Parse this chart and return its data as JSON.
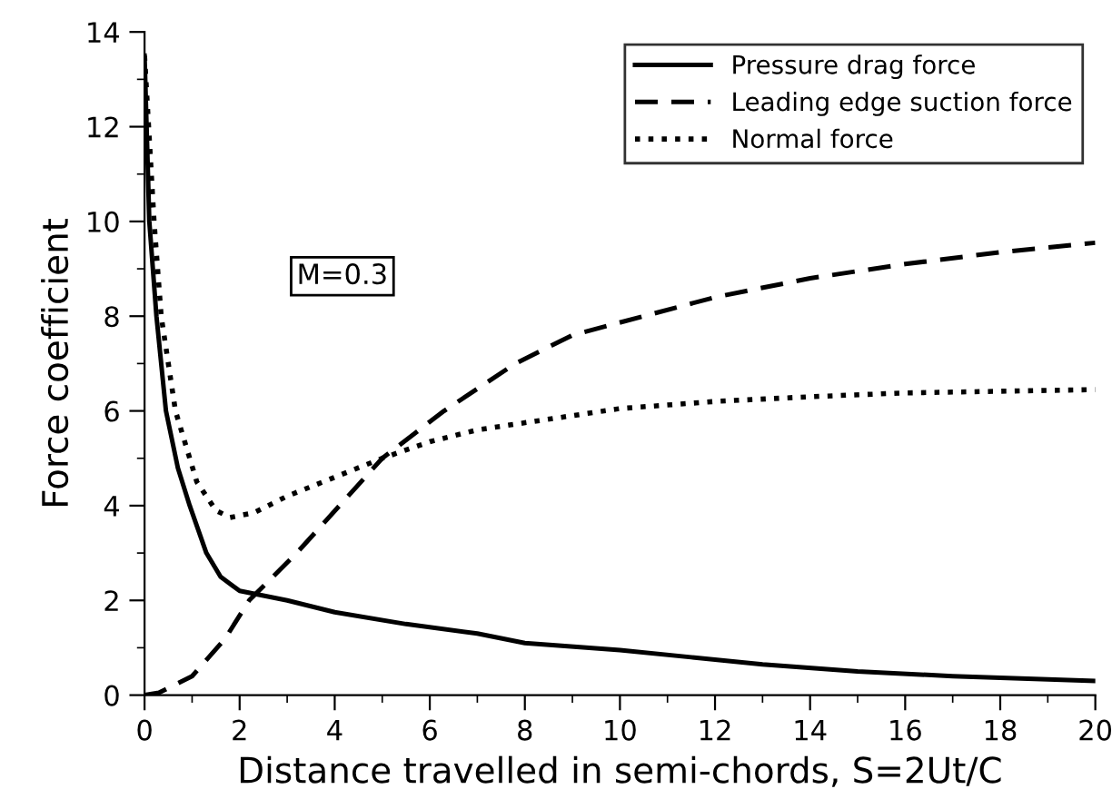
{
  "chart_data": {
    "type": "line",
    "xlabel": "Distance travelled in semi-chords, S=2Ut/C",
    "ylabel": "Force coefficient",
    "xlim": [
      0,
      20
    ],
    "ylim": [
      0,
      14
    ],
    "xticks": [
      0,
      2,
      4,
      6,
      8,
      10,
      12,
      14,
      16,
      18,
      20
    ],
    "yticks": [
      0,
      2,
      4,
      6,
      8,
      10,
      12,
      14
    ],
    "grid": false,
    "legend": "top right",
    "marker": "none",
    "annotations": [
      "M=0.3"
    ],
    "series": [
      {
        "name": "Pressure drag force",
        "color": "#000000",
        "line_style": "solid",
        "x": [
          0,
          0.1,
          0.25,
          0.45,
          0.7,
          0.95,
          1.3,
          1.6,
          2,
          3,
          4,
          5.5,
          7,
          8,
          10,
          11.5,
          13,
          15,
          17,
          20
        ],
        "values": [
          13.5,
          10,
          8,
          6,
          4.8,
          4,
          3,
          2.5,
          2.2,
          2.0,
          1.75,
          1.5,
          1.3,
          1.1,
          0.95,
          0.8,
          0.65,
          0.5,
          0.4,
          0.3
        ]
      },
      {
        "name": "Leading edge suction force",
        "color": "#000000",
        "line_style": "dashed",
        "x": [
          0,
          0.3,
          1,
          1.7,
          2.2,
          3.2,
          4.1,
          5,
          6.3,
          7.8,
          9,
          10.5,
          12,
          14,
          16,
          18,
          20
        ],
        "values": [
          0,
          0.05,
          0.4,
          1.2,
          2,
          3,
          4,
          5,
          6,
          7,
          7.6,
          8.0,
          8.4,
          8.8,
          9.1,
          9.35,
          9.55
        ]
      },
      {
        "name": "Normal force",
        "color": "#000000",
        "line_style": "dotted",
        "x": [
          0,
          0.2,
          0.35,
          0.65,
          1.1,
          1.5,
          1.8,
          2.3,
          3,
          4,
          5,
          6,
          7,
          9,
          10,
          12,
          14,
          16,
          20
        ],
        "values": [
          13.5,
          10,
          8,
          6,
          4.5,
          3.9,
          3.75,
          3.85,
          4.2,
          4.6,
          5.0,
          5.35,
          5.6,
          5.9,
          6.05,
          6.2,
          6.3,
          6.38,
          6.45
        ]
      }
    ]
  }
}
